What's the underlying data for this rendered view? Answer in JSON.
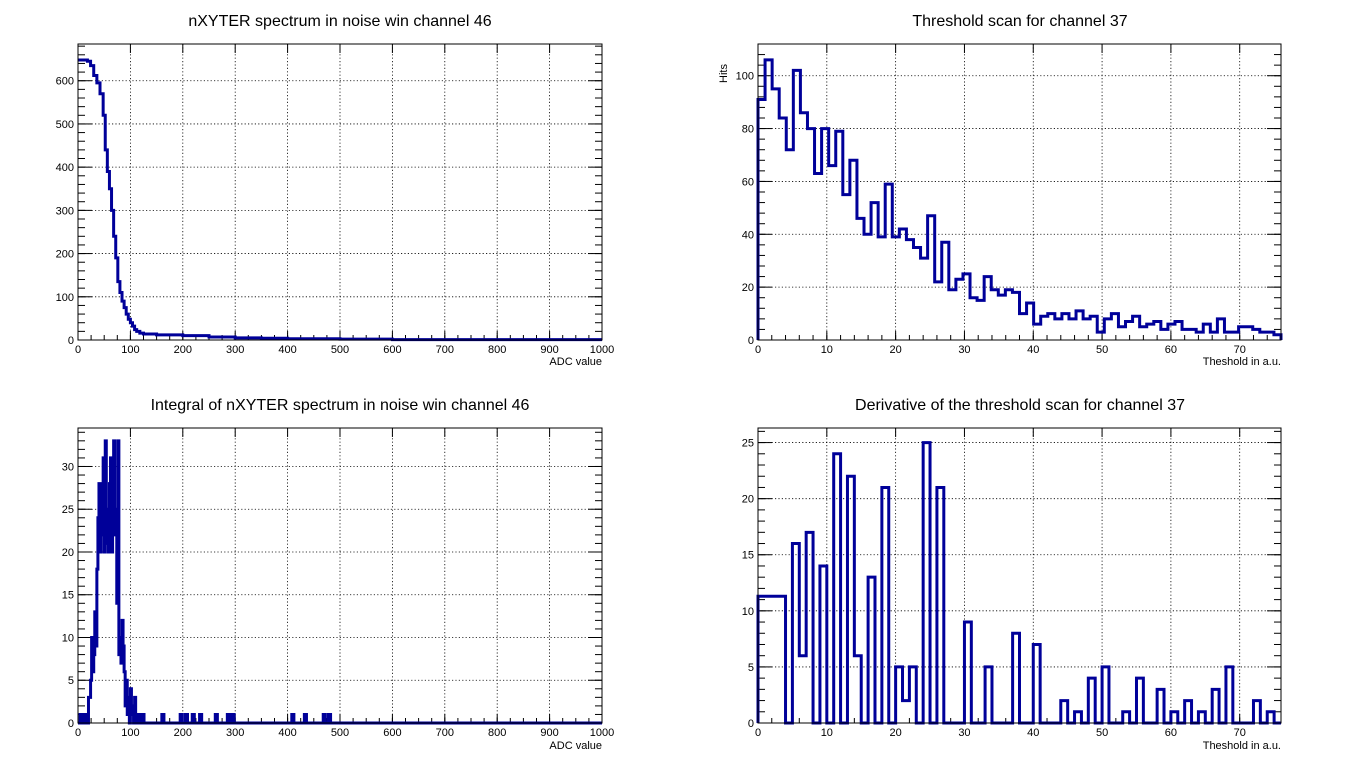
{
  "chart_data": [
    {
      "type": "histogram",
      "title": "nXYTER spectrum in noise win channel 46",
      "xlabel": "ADC value",
      "ylabel": "",
      "xlim": [
        0,
        1000
      ],
      "ylim": [
        0,
        685
      ],
      "xticks": [
        0,
        100,
        200,
        300,
        400,
        500,
        600,
        700,
        800,
        900,
        1000
      ],
      "yticks": [
        0,
        100,
        200,
        300,
        400,
        500,
        600
      ],
      "grid": true,
      "color": "#000099",
      "points": [
        [
          0,
          648
        ],
        [
          12,
          648
        ],
        [
          18,
          645
        ],
        [
          24,
          635
        ],
        [
          30,
          612
        ],
        [
          36,
          595
        ],
        [
          42,
          570
        ],
        [
          48,
          520
        ],
        [
          52,
          440
        ],
        [
          56,
          390
        ],
        [
          60,
          350
        ],
        [
          64,
          300
        ],
        [
          68,
          240
        ],
        [
          72,
          190
        ],
        [
          76,
          135
        ],
        [
          80,
          110
        ],
        [
          84,
          90
        ],
        [
          88,
          75
        ],
        [
          92,
          60
        ],
        [
          96,
          48
        ],
        [
          100,
          40
        ],
        [
          104,
          32
        ],
        [
          108,
          24
        ],
        [
          112,
          20
        ],
        [
          118,
          16
        ],
        [
          125,
          14
        ],
        [
          150,
          12
        ],
        [
          200,
          10
        ],
        [
          250,
          7
        ],
        [
          300,
          5
        ],
        [
          350,
          4
        ],
        [
          400,
          3
        ],
        [
          500,
          2
        ],
        [
          600,
          1
        ],
        [
          700,
          1
        ],
        [
          1000,
          1
        ]
      ]
    },
    {
      "type": "histogram",
      "title": "Threshold scan for channel 37",
      "xlabel": "Theshold in a.u.",
      "ylabel": "Hits",
      "xlim": [
        0,
        76
      ],
      "ylim": [
        0,
        112
      ],
      "xticks": [
        0,
        10,
        20,
        30,
        40,
        50,
        60,
        70
      ],
      "yticks": [
        0,
        20,
        40,
        60,
        80,
        100
      ],
      "grid": true,
      "color": "#000099",
      "values": [
        91,
        106,
        95,
        84,
        72,
        102,
        86,
        80,
        63,
        80,
        66,
        79,
        55,
        68,
        46,
        40,
        52,
        39,
        59,
        39,
        42,
        38,
        35,
        31,
        47,
        22,
        37,
        19,
        23,
        25,
        16,
        15,
        24,
        19,
        17,
        19,
        18,
        10,
        14,
        6,
        9,
        10,
        8,
        10,
        8,
        11,
        8,
        9,
        3,
        8,
        10,
        5,
        7,
        9,
        5,
        6,
        7,
        4,
        6,
        7,
        4,
        4,
        3,
        6,
        3,
        8,
        3,
        3,
        5,
        5,
        4,
        3,
        3,
        2
      ]
    },
    {
      "type": "histogram",
      "title": "Integral of nXYTER spectrum in noise win channel 46",
      "xlabel": "ADC value",
      "ylabel": "",
      "xlim": [
        0,
        1000
      ],
      "ylim": [
        0,
        34.5
      ],
      "xticks": [
        0,
        100,
        200,
        300,
        400,
        500,
        600,
        700,
        800,
        900,
        1000
      ],
      "yticks": [
        0,
        5,
        10,
        15,
        20,
        25,
        30
      ],
      "grid": true,
      "color": "#000099",
      "points": [
        [
          0,
          0
        ],
        [
          4,
          1
        ],
        [
          8,
          0
        ],
        [
          12,
          1
        ],
        [
          16,
          0
        ],
        [
          20,
          3
        ],
        [
          24,
          5
        ],
        [
          26,
          10
        ],
        [
          28,
          6
        ],
        [
          30,
          8
        ],
        [
          32,
          13
        ],
        [
          34,
          9
        ],
        [
          36,
          18
        ],
        [
          38,
          24
        ],
        [
          40,
          28
        ],
        [
          42,
          20
        ],
        [
          44,
          28
        ],
        [
          46,
          22
        ],
        [
          48,
          31
        ],
        [
          50,
          20
        ],
        [
          52,
          33
        ],
        [
          54,
          21
        ],
        [
          56,
          25
        ],
        [
          58,
          20
        ],
        [
          60,
          28
        ],
        [
          62,
          31
        ],
        [
          64,
          20
        ],
        [
          66,
          23
        ],
        [
          68,
          33
        ],
        [
          70,
          22
        ],
        [
          72,
          25
        ],
        [
          74,
          14
        ],
        [
          76,
          33
        ],
        [
          78,
          8
        ],
        [
          80,
          10
        ],
        [
          82,
          7
        ],
        [
          84,
          12
        ],
        [
          86,
          9
        ],
        [
          88,
          6
        ],
        [
          90,
          2
        ],
        [
          92,
          5
        ],
        [
          94,
          1
        ],
        [
          96,
          3
        ],
        [
          98,
          0
        ],
        [
          100,
          4
        ],
        [
          102,
          1
        ],
        [
          104,
          2
        ],
        [
          106,
          0
        ],
        [
          108,
          3
        ],
        [
          110,
          0
        ],
        [
          114,
          1
        ],
        [
          118,
          0
        ],
        [
          122,
          1
        ],
        [
          126,
          0
        ],
        [
          160,
          1
        ],
        [
          164,
          0
        ],
        [
          195,
          1
        ],
        [
          199,
          0
        ],
        [
          205,
          1
        ],
        [
          209,
          0
        ],
        [
          218,
          1
        ],
        [
          222,
          0
        ],
        [
          232,
          1
        ],
        [
          236,
          0
        ],
        [
          262,
          1
        ],
        [
          266,
          0
        ],
        [
          285,
          1
        ],
        [
          289,
          0
        ],
        [
          294,
          1
        ],
        [
          298,
          0
        ],
        [
          408,
          1
        ],
        [
          412,
          0
        ],
        [
          432,
          1
        ],
        [
          436,
          0
        ],
        [
          468,
          1
        ],
        [
          472,
          0
        ],
        [
          478,
          1
        ],
        [
          482,
          0
        ],
        [
          1000,
          0
        ]
      ]
    },
    {
      "type": "histogram",
      "title": "Derivative of the threshold scan for channel 37",
      "xlabel": "Theshold in a.u.",
      "ylabel": "",
      "xlim": [
        0,
        76
      ],
      "ylim": [
        0,
        26.3
      ],
      "xticks": [
        0,
        10,
        20,
        30,
        40,
        50,
        60,
        70
      ],
      "yticks": [
        0,
        5,
        10,
        15,
        20,
        25
      ],
      "grid": true,
      "color": "#000099",
      "values": [
        11.3,
        11.3,
        11.3,
        11.3,
        0,
        16,
        6,
        17,
        0,
        14,
        0,
        24,
        0,
        22,
        6,
        0,
        13,
        0,
        21,
        0,
        5,
        2,
        5,
        0,
        25,
        0,
        21,
        0,
        0,
        0,
        9,
        0,
        0,
        5,
        0,
        0,
        0,
        8,
        0,
        0,
        7,
        0,
        0,
        0,
        2,
        0,
        1,
        0,
        4,
        0,
        5,
        0,
        0,
        1,
        0,
        4,
        0,
        0,
        3,
        0,
        1,
        0,
        2,
        0,
        1,
        0,
        3,
        0,
        5,
        0,
        0,
        0,
        2,
        0,
        1,
        0
      ]
    }
  ]
}
